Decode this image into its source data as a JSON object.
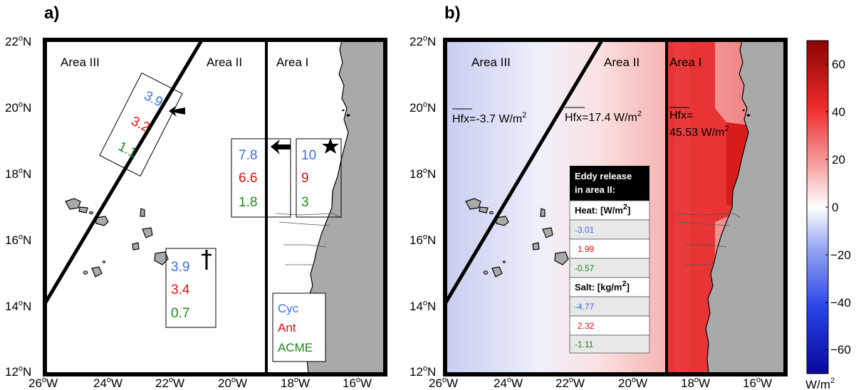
{
  "panel_a": {
    "label": "a)",
    "areas": [
      "Area III",
      "Area II",
      "Area I"
    ],
    "groups": [
      {
        "id": "area3-box",
        "values": [
          "3.9",
          "3.2",
          "1.1"
        ],
        "marker": "arrow-left-icon"
      },
      {
        "id": "area2-box",
        "values": [
          "7.8",
          "6.6",
          "1.8"
        ],
        "marker": "arrow-left-icon"
      },
      {
        "id": "area1-box",
        "values": [
          "10",
          "9",
          "3"
        ],
        "marker": "star-icon"
      },
      {
        "id": "south-box",
        "values": [
          "3.9",
          "3.4",
          "0.7"
        ],
        "marker": "dagger-icon"
      }
    ],
    "legend": [
      "Cyc",
      "Ant",
      "ACME"
    ]
  },
  "panel_b": {
    "label": "b)",
    "areas": [
      "Area III",
      "Area II",
      "Area I"
    ],
    "hfx": [
      {
        "name": "Hfx",
        "rest": "=-3.7 W/m",
        "sup": "2"
      },
      {
        "name": "Hfx",
        "rest": "=17.4 W/m",
        "sup": "2"
      },
      {
        "name": "Hfx",
        "rest": "=",
        "line2": "45.53 W/m",
        "sup": "2"
      }
    ],
    "table": {
      "header": [
        "Eddy release",
        "in area II:"
      ],
      "heat_label": "Heat:  [W/m",
      "heat_values": [
        "-3.01",
        "1.99",
        "-0.57"
      ],
      "salt_label": "Salt: [kg/m",
      "salt_values": [
        "-4.77",
        "2.32",
        "-1.11"
      ],
      "sup": "2",
      "close": "]"
    },
    "colorbar": {
      "ticks": [
        "60",
        "40",
        "20",
        "0",
        "−20",
        "−40",
        "−60"
      ],
      "unit": "W/m",
      "unit_sup": "2",
      "range": [
        -70,
        70
      ]
    }
  },
  "axes": {
    "lat_ticks": [
      "22",
      "20",
      "18",
      "16",
      "14",
      "12"
    ],
    "lat_suffix": "N",
    "lon_ticks": [
      "26",
      "24",
      "22",
      "20",
      "18",
      "16"
    ],
    "lon_suffix": "W",
    "deg": "o"
  },
  "colors": {
    "cyc": "#3a6fe6",
    "ant": "#e01010",
    "acme": "#1a8a1a",
    "land": "#a9a9a9"
  }
}
